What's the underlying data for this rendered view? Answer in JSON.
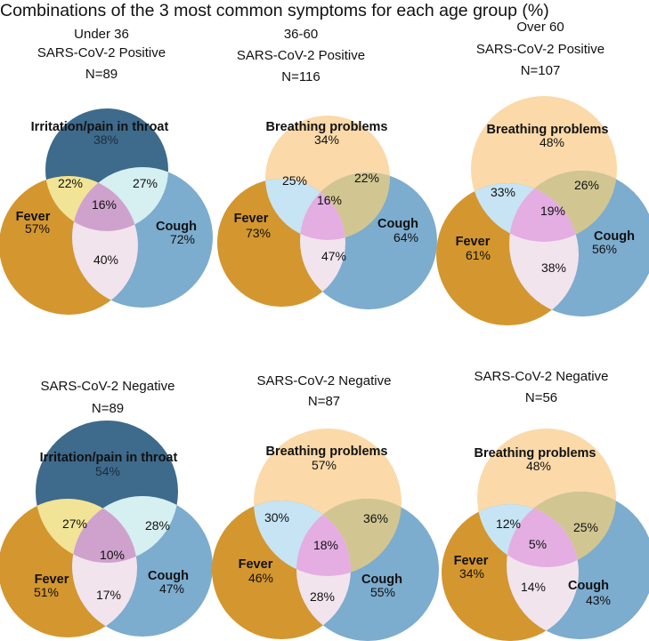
{
  "chart_data": {
    "type": "venn",
    "title": "Combinations of the 3 most common symptoms for each age group (%)",
    "colors": {
      "dark_blue_circle": "#3e6a8c",
      "blue_circle": "#7cacce",
      "orange_circle": "#d4962e",
      "peach_circle": "#fbd9a9",
      "yellow_overlap": "#f2e496",
      "light_cyan_overlap": "#d6eff0",
      "light_blue_overlap": "#c6e4f4",
      "olive_overlap": "#d1c691",
      "center_purple": "#cfa2cd",
      "center_pink": "#e4aee2",
      "pink_overlap": "#f2e4ec"
    },
    "panels": [
      {
        "id": "positive-under-36",
        "header": [
          "Under 36",
          "SARS-CoV-2 Positive",
          "N=89"
        ],
        "top_symptom": "Irritation/pain in throat",
        "values": {
          "top": "38%",
          "fever": "57%",
          "cough": "72%",
          "top_fever": "22%",
          "top_cough": "27%",
          "fever_cough": "40%",
          "all": "16%"
        }
      },
      {
        "id": "positive-36-60",
        "header": [
          "36-60",
          "SARS-CoV-2 Positive",
          "N=116"
        ],
        "top_symptom": "Breathing problems",
        "values": {
          "top": "34%",
          "fever": "73%",
          "cough": "64%",
          "top_fever": "25%",
          "top_cough": "22%",
          "fever_cough": "47%",
          "all": "16%"
        }
      },
      {
        "id": "positive-over-60",
        "header": [
          "Over 60",
          "SARS-CoV-2 Positive",
          "N=107"
        ],
        "top_symptom": "Breathing problems",
        "values": {
          "top": "48%",
          "fever": "61%",
          "cough": "56%",
          "top_fever": "33%",
          "top_cough": "26%",
          "fever_cough": "38%",
          "all": "19%"
        }
      },
      {
        "id": "negative-under-36",
        "header": [
          "SARS-CoV-2 Negative",
          "N=89"
        ],
        "top_symptom": "Irritation/pain in throat",
        "values": {
          "top": "54%",
          "fever": "51%",
          "cough": "47%",
          "top_fever": "27%",
          "top_cough": "28%",
          "fever_cough": "17%",
          "all": "10%"
        }
      },
      {
        "id": "negative-36-60",
        "header": [
          "SARS-CoV-2 Negative",
          "N=87"
        ],
        "top_symptom": "Breathing problems",
        "values": {
          "top": "57%",
          "fever": "46%",
          "cough": "55%",
          "top_fever": "30%",
          "top_cough": "36%",
          "fever_cough": "28%",
          "all": "18%"
        }
      },
      {
        "id": "negative-over-60",
        "header": [
          "SARS-CoV-2 Negative",
          "N=56"
        ],
        "top_symptom": "Breathing problems",
        "values": {
          "top": "48%",
          "fever": "34%",
          "cough": "43%",
          "top_fever": "12%",
          "top_cough": "25%",
          "fever_cough": "14%",
          "all": "5%"
        }
      }
    ],
    "fever_label": "Fever",
    "cough_label": "Cough"
  }
}
